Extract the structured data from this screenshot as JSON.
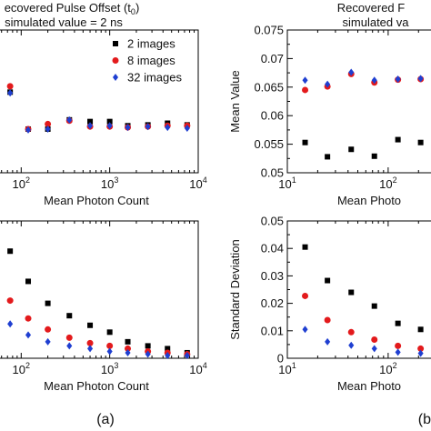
{
  "chart_data": [
    {
      "id": "a-top",
      "type": "scatter",
      "title": "ecovered Pulse Offset (t",
      "title_sub": "0",
      "title_tail": ")",
      "subtitle": "simulated value = 2 ns",
      "xlabel": "Mean Photon Count",
      "ylabel": "",
      "xscale": "log",
      "xlim": [
        50,
        10000
      ],
      "ylim": [
        1.5,
        3.2
      ],
      "x_ticks": [
        {
          "value": 100,
          "base": "10",
          "exp": "2"
        },
        {
          "value": 1000,
          "base": "10",
          "exp": "3"
        },
        {
          "value": 10000,
          "base": "10",
          "exp": "4"
        }
      ],
      "legend": {
        "position": "top-right"
      },
      "series": [
        {
          "name": "2 images",
          "color": "#000000",
          "marker": "square",
          "x": [
            45,
            75,
            120,
            200,
            350,
            600,
            1000,
            1600,
            2700,
            4500,
            7500
          ],
          "y": [
            2.34,
            2.46,
            2.02,
            2.02,
            2.13,
            2.11,
            2.11,
            2.06,
            2.07,
            2.09,
            2.07
          ]
        },
        {
          "name": "8 images",
          "color": "#e31a1c",
          "marker": "circle",
          "x": [
            45,
            75,
            120,
            200,
            350,
            600,
            1000,
            1600,
            2700,
            4500,
            7500
          ],
          "y": [
            2.39,
            2.53,
            2.02,
            2.08,
            2.12,
            2.05,
            2.05,
            2.04,
            2.05,
            2.06,
            2.06
          ]
        },
        {
          "name": "32 images",
          "color": "#1f3fd1",
          "marker": "diamond",
          "x": [
            45,
            75,
            120,
            200,
            350,
            600,
            1000,
            1600,
            2700,
            4500,
            7500
          ],
          "y": [
            2.35,
            2.45,
            2.01,
            2.02,
            2.13,
            2.06,
            2.06,
            2.04,
            2.05,
            2.04,
            2.03
          ]
        }
      ]
    },
    {
      "id": "a-bottom",
      "type": "scatter",
      "xlabel": "Mean Photon Count",
      "ylabel": "",
      "xscale": "log",
      "xlim": [
        50,
        10000
      ],
      "ylim": [
        0,
        1
      ],
      "x_ticks": [
        {
          "value": 100,
          "base": "10",
          "exp": "2"
        },
        {
          "value": 1000,
          "base": "10",
          "exp": "3"
        },
        {
          "value": 10000,
          "base": "10",
          "exp": "4"
        }
      ],
      "series": [
        {
          "name": "2 images",
          "color": "#000000",
          "marker": "square",
          "x": [
            45,
            75,
            120,
            200,
            350,
            600,
            1000,
            1600,
            2700,
            4500,
            7500
          ],
          "y": [
            0.82,
            0.78,
            0.56,
            0.4,
            0.31,
            0.24,
            0.19,
            0.12,
            0.09,
            0.07,
            0.04
          ]
        },
        {
          "name": "8 images",
          "color": "#e31a1c",
          "marker": "circle",
          "x": [
            45,
            75,
            120,
            200,
            350,
            600,
            1000,
            1600,
            2700,
            4500,
            7500
          ],
          "y": [
            0.62,
            0.42,
            0.29,
            0.21,
            0.15,
            0.11,
            0.09,
            0.07,
            0.05,
            0.04,
            0.03
          ]
        },
        {
          "name": "32 images",
          "color": "#1f3fd1",
          "marker": "diamond",
          "x": [
            45,
            75,
            120,
            200,
            350,
            600,
            1000,
            1600,
            2700,
            4500,
            7500
          ],
          "y": [
            0.4,
            0.25,
            0.17,
            0.12,
            0.09,
            0.07,
            0.05,
            0.04,
            0.03,
            0.02,
            0.02
          ]
        }
      ]
    },
    {
      "id": "b-top",
      "type": "scatter",
      "title": "Recovered F",
      "subtitle": "simulated va",
      "xlabel": "Mean Photo",
      "ylabel": "Mean Value",
      "xscale": "log",
      "xlim": [
        10,
        420
      ],
      "ylim": [
        0.05,
        0.075
      ],
      "y_ticks": [
        0.05,
        0.055,
        0.06,
        0.065,
        0.07,
        0.075
      ],
      "y_tick_labels": [
        "0.05",
        "0.055",
        "0.06",
        "0.065",
        "0.07",
        "0.075"
      ],
      "x_ticks": [
        {
          "value": 10,
          "base": "10",
          "exp": "1"
        },
        {
          "value": 100,
          "base": "10",
          "exp": "2"
        }
      ],
      "series": [
        {
          "name": "2 images",
          "color": "#000000",
          "marker": "square",
          "x": [
            15,
            25,
            43,
            73,
            125,
            210,
            360
          ],
          "y": [
            0.0553,
            0.0528,
            0.0541,
            0.0529,
            0.0558,
            0.0553,
            0.0545
          ]
        },
        {
          "name": "8 images",
          "color": "#e31a1c",
          "marker": "circle",
          "x": [
            15,
            25,
            43,
            73,
            125,
            210,
            360
          ],
          "y": [
            0.0645,
            0.0651,
            0.0673,
            0.0658,
            0.0663,
            0.0664,
            0.066
          ]
        },
        {
          "name": "32 images",
          "color": "#1f3fd1",
          "marker": "diamond",
          "x": [
            15,
            25,
            43,
            73,
            125,
            210,
            360
          ],
          "y": [
            0.0662,
            0.0655,
            0.0676,
            0.0662,
            0.0664,
            0.0665,
            0.0662
          ]
        }
      ]
    },
    {
      "id": "b-bottom",
      "type": "scatter",
      "xlabel": "Mean Photo",
      "ylabel": "Standard Deviation",
      "xscale": "log",
      "xlim": [
        10,
        420
      ],
      "ylim": [
        0,
        0.05
      ],
      "y_ticks": [
        0,
        0.01,
        0.02,
        0.03,
        0.04,
        0.05
      ],
      "y_tick_labels": [
        "0",
        "0.01",
        "0.02",
        "0.03",
        "0.04",
        "0.05"
      ],
      "x_ticks": [
        {
          "value": 10,
          "base": "10",
          "exp": "1"
        },
        {
          "value": 100,
          "base": "10",
          "exp": "2"
        }
      ],
      "series": [
        {
          "name": "2 images",
          "color": "#000000",
          "marker": "square",
          "x": [
            15,
            25,
            43,
            73,
            125,
            210,
            360
          ],
          "y": [
            0.0405,
            0.0283,
            0.024,
            0.019,
            0.0127,
            0.0105,
            0.0085
          ]
        },
        {
          "name": "8 images",
          "color": "#e31a1c",
          "marker": "circle",
          "x": [
            15,
            25,
            43,
            73,
            125,
            210,
            360
          ],
          "y": [
            0.0227,
            0.0139,
            0.0095,
            0.0068,
            0.0045,
            0.0035,
            0.0028
          ]
        },
        {
          "name": "32 images",
          "color": "#1f3fd1",
          "marker": "diamond",
          "x": [
            15,
            25,
            43,
            73,
            125,
            210,
            360
          ],
          "y": [
            0.0105,
            0.006,
            0.0047,
            0.0035,
            0.0022,
            0.0018,
            0.0015
          ]
        }
      ]
    }
  ],
  "panel_labels": {
    "a": "(a)",
    "b": "(b"
  }
}
